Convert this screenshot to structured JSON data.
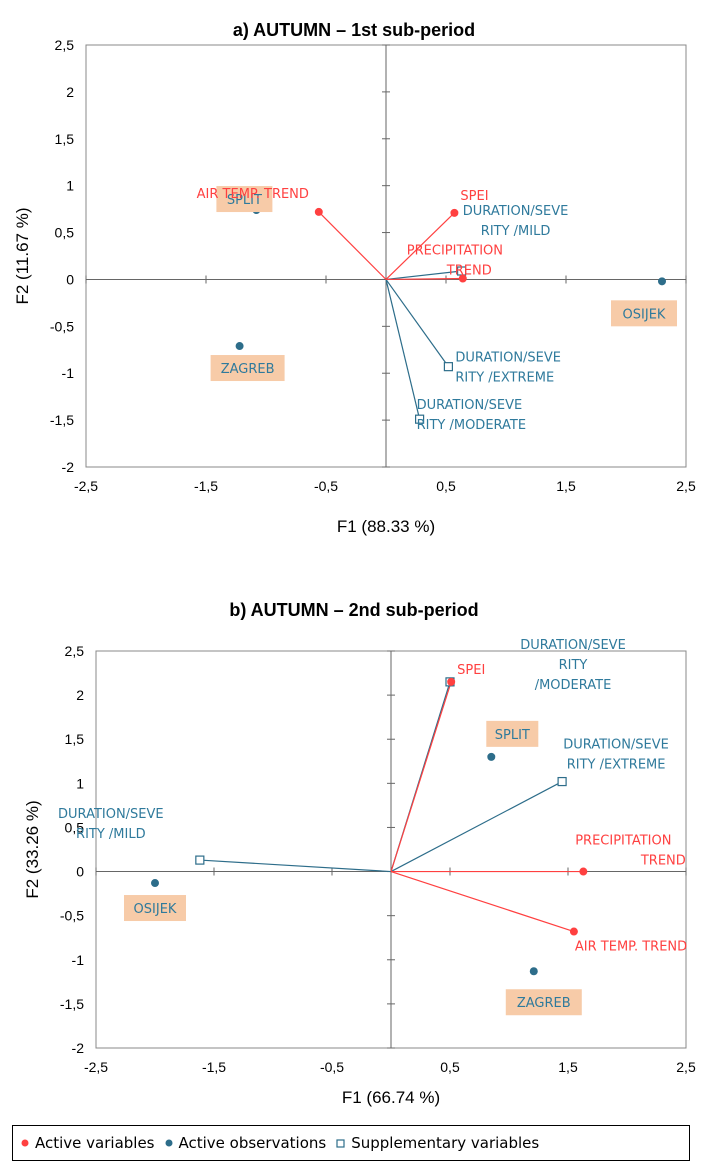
{
  "chart_data": [
    {
      "type": "scatter",
      "title": "a) AUTUMN – 1st sub-period",
      "xlabel": "F1 (88.33 %)",
      "ylabel": "F2 (11.67 %)",
      "xlim": [
        -2.5,
        2.5
      ],
      "ylim": [
        -2,
        2.5
      ],
      "xticks": [
        "-2,5",
        "-1,5",
        "-0,5",
        "0,5",
        "1,5",
        "2,5"
      ],
      "yticks": [
        "-2",
        "-1,5",
        "-1",
        "-0,5",
        "0",
        "0,5",
        "1",
        "1,5",
        "2",
        "2,5"
      ],
      "active_variables": [
        {
          "label": "AIR TEMP. TREND",
          "x": -0.56,
          "y": 0.72
        },
        {
          "label": "SPEI",
          "x": 0.57,
          "y": 0.71
        },
        {
          "label": "PRECIPITATION TREND",
          "x": 0.64,
          "y": 0.01
        }
      ],
      "active_observations": [
        {
          "label": "SPLIT",
          "x": -1.08,
          "y": 0.74
        },
        {
          "label": "ZAGREB",
          "x": -1.22,
          "y": -0.71
        },
        {
          "label": "OSIJEK",
          "x": 2.3,
          "y": -0.02
        }
      ],
      "supplementary_variables": [
        {
          "label": "DURATION/SEVERITY /MILD",
          "label_lines": [
            "DURATION/SEVE",
            "RITY /MILD"
          ],
          "x": 0.63,
          "y": 0.09
        },
        {
          "label": "DURATION/SEVERITY /EXTREME",
          "label_lines": [
            "DURATION/SEVE",
            "RITY /EXTREME"
          ],
          "x": 0.52,
          "y": -0.93
        },
        {
          "label": "DURATION/SEVERITY /MODERATE",
          "label_lines": [
            "DURATION/SEVE",
            "RITY /MODERATE"
          ],
          "x": 0.28,
          "y": -1.49
        }
      ]
    },
    {
      "type": "scatter",
      "title": "b) AUTUMN – 2nd sub-period",
      "xlabel": "F1 (66.74 %)",
      "ylabel": "F2 (33.26 %)",
      "xlim": [
        -2.5,
        2.5
      ],
      "ylim": [
        -2,
        2.5
      ],
      "xticks": [
        "-2,5",
        "-1,5",
        "-0,5",
        "0,5",
        "1,5",
        "2,5"
      ],
      "yticks": [
        "-2",
        "-1,5",
        "-1",
        "-0,5",
        "0",
        "0,5",
        "1",
        "1,5",
        "2",
        "2,5"
      ],
      "active_variables": [
        {
          "label": "SPEI",
          "x": 0.51,
          "y": 2.15
        },
        {
          "label": "PRECIPITATION TREND",
          "x": 1.63,
          "y": 0.0
        },
        {
          "label": "AIR TEMP. TREND",
          "x": 1.55,
          "y": -0.68
        }
      ],
      "active_observations": [
        {
          "label": "SPLIT",
          "x": 0.85,
          "y": 1.3
        },
        {
          "label": "OSIJEK",
          "x": -2.0,
          "y": -0.13
        },
        {
          "label": "ZAGREB",
          "x": 1.21,
          "y": -1.13
        }
      ],
      "supplementary_variables": [
        {
          "label": "DURATION/SEVERITY /MODERATE",
          "label_lines": [
            "DURATION/SEVE",
            "RITY",
            "/MODERATE"
          ],
          "x": 0.5,
          "y": 2.15
        },
        {
          "label": "DURATION/SEVERITY /EXTREME",
          "label_lines": [
            "DURATION/SEVE",
            "RITY /EXTREME"
          ],
          "x": 1.45,
          "y": 1.02
        },
        {
          "label": "DURATION/SEVERITY /MILD",
          "label_lines": [
            "DURATION/SEVE",
            "RITY /MILD"
          ],
          "x": -1.62,
          "y": 0.13
        }
      ]
    }
  ],
  "legend": {
    "active_variables": "Active variables",
    "active_observations": "Active observations",
    "supplementary_variables": "Supplementary variables"
  },
  "colors": {
    "active_variable": "#ff4040",
    "observation": "#2d6d8a",
    "supplementary": "#2d6d8a",
    "observation_box": "#f7cba8",
    "supplementary_text": "#2f7a9c"
  }
}
